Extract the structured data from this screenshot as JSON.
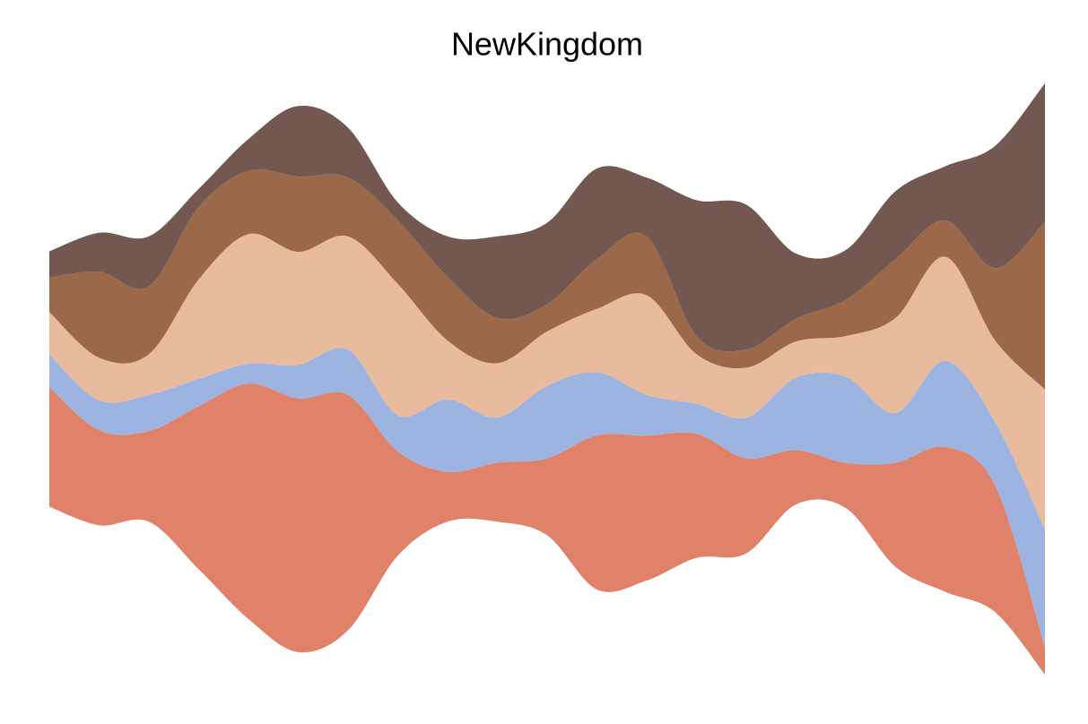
{
  "chart_data": {
    "type": "streamgraph",
    "title": "NewKingdom",
    "baseline": "symmetric",
    "series": [
      {
        "color": "#e0826a",
        "values": [
          132,
          105,
          100,
          180,
          260,
          280,
          260,
          115,
          55,
          65,
          85,
          170,
          160,
          137,
          105,
          60,
          50,
          115,
          160,
          140,
          30
        ]
      },
      {
        "color": "#9db4e0",
        "values": [
          36,
          33,
          40,
          30,
          22,
          37,
          50,
          40,
          80,
          50,
          80,
          70,
          45,
          33,
          45,
          80,
          95,
          55,
          95,
          70,
          130
        ]
      },
      {
        "color": "#e8bb9e",
        "values": [
          47,
          47,
          45,
          110,
          143,
          125,
          125,
          145,
          65,
          60,
          60,
          70,
          110,
          55,
          55,
          40,
          45,
          105,
          115,
          90,
          155
        ]
      },
      {
        "color": "#9b684a",
        "values": [
          38,
          95,
          75,
          80,
          70,
          83,
          65,
          70,
          70,
          50,
          30,
          55,
          65,
          20,
          20,
          25,
          40,
          65,
          40,
          80,
          185
        ]
      },
      {
        "color": "#725850",
        "values": [
          29,
          43,
          55,
          20,
          35,
          78,
          55,
          20,
          45,
          90,
          90,
          100,
          65,
          150,
          160,
          72,
          55,
          75,
          60,
          135,
          153
        ]
      }
    ]
  }
}
